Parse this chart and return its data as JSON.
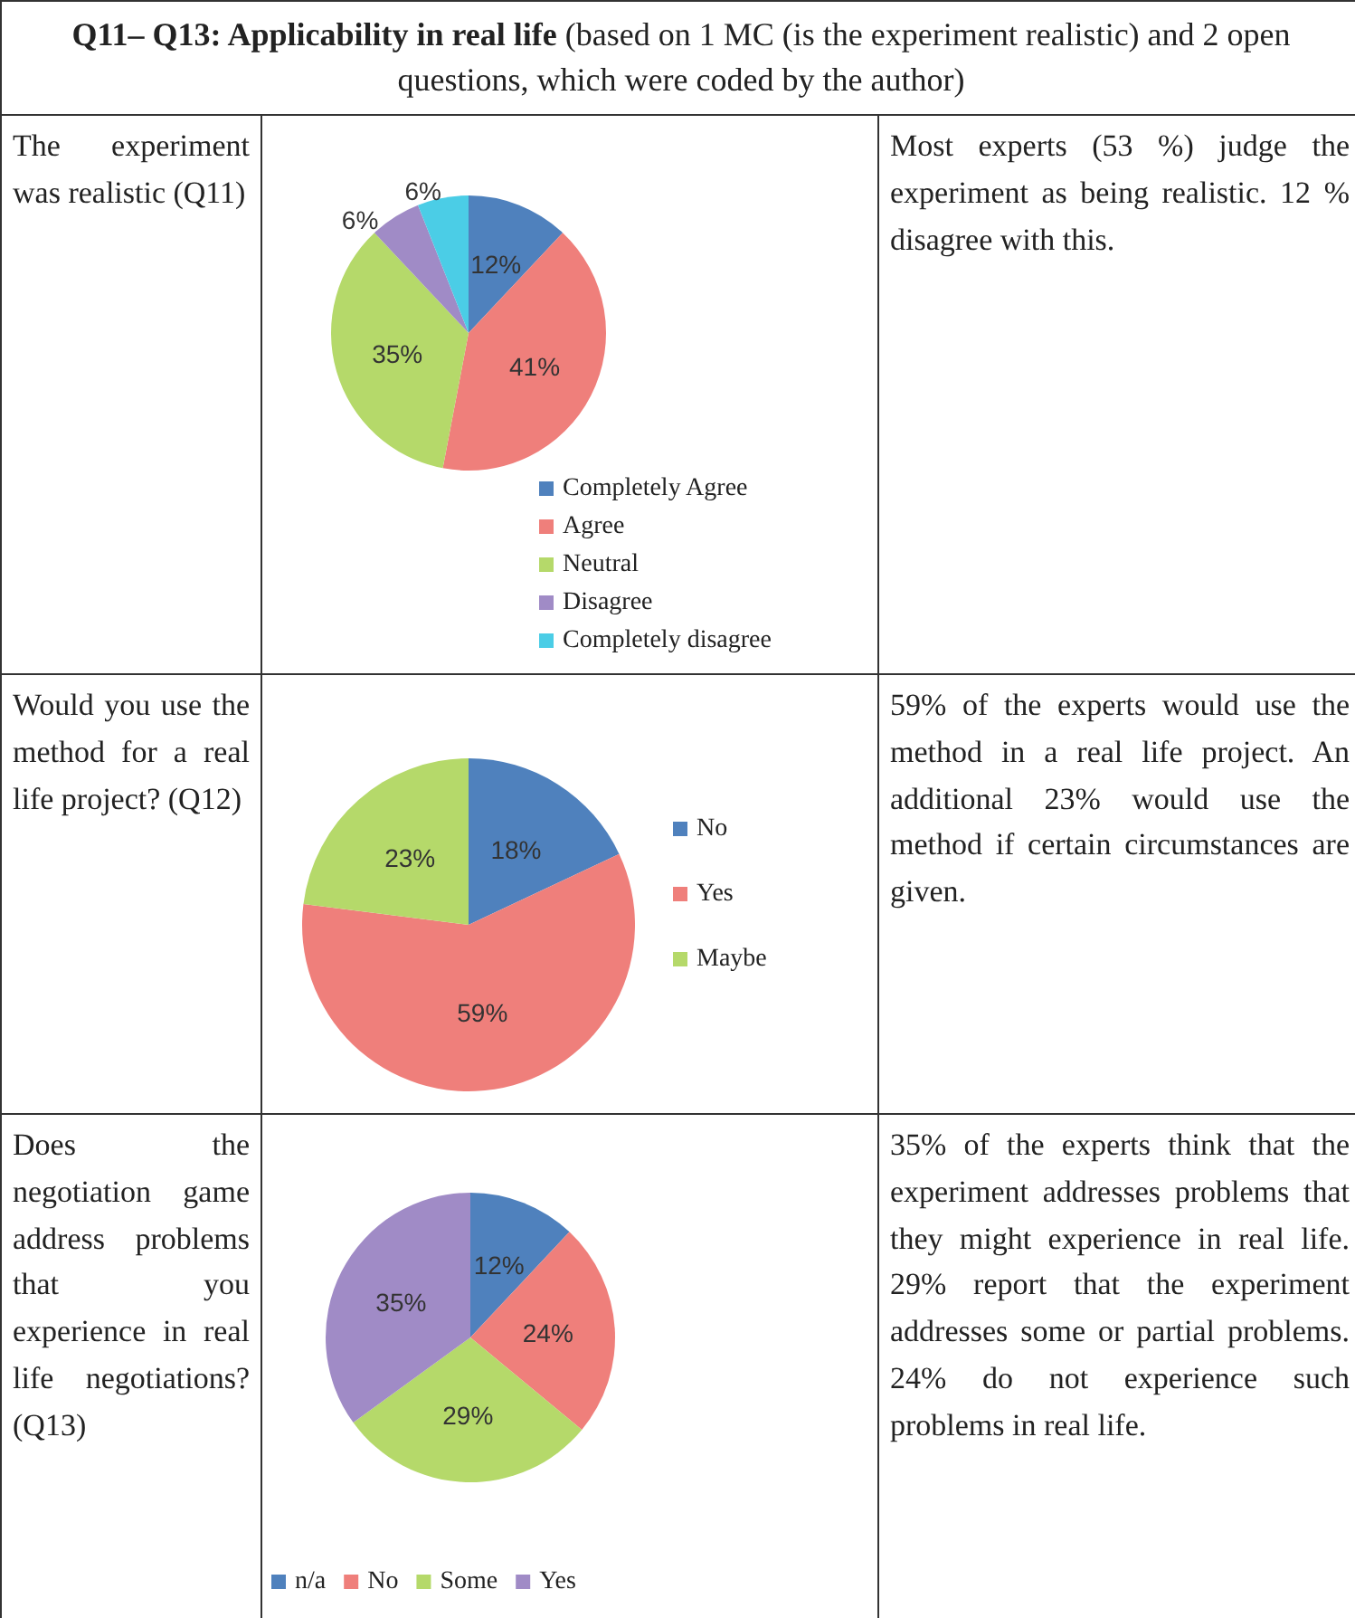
{
  "chart_data": [
    {
      "type": "other",
      "title": "Q11– Q13: Applicability in real life",
      "subtitle": "(based on 1 MC (is the experiment realistic) and 2 open questions, which were coded by the author)"
    },
    {
      "type": "other",
      "title": "The experiment was realistic (Q11)"
    },
    {
      "type": "pie",
      "categories": [
        "Completely Agree",
        "Agree",
        "Neutral",
        "Disagree",
        "Completely disagree"
      ],
      "values": [
        12,
        41,
        35,
        6,
        6
      ],
      "colors": [
        "#4f81bd",
        "#ef7f7b",
        "#b5d96a",
        "#a08bc6",
        "#4bcde6"
      ],
      "value_labels": [
        "12%",
        "41%",
        "35%",
        "6%",
        "6%"
      ],
      "legend": "bottom right"
    },
    {
      "type": "other",
      "annotations": [
        "Most experts (53 %) judge the experiment as being realistic. 12 % disagree with this."
      ]
    },
    {
      "type": "other",
      "title": "Would you use the method for a real life project? (Q12)"
    },
    {
      "type": "pie",
      "categories": [
        "No",
        "Yes",
        "Maybe"
      ],
      "values": [
        18,
        59,
        23
      ],
      "colors": [
        "#4f81bd",
        "#ef7f7b",
        "#b5d96a"
      ],
      "value_labels": [
        "18%",
        "59%",
        "23%"
      ],
      "legend": "right"
    },
    {
      "type": "other",
      "annotations": [
        "59% of the experts would use the method in a real life project. An additional 23% would use the method if certain circumstances are given."
      ]
    },
    {
      "type": "other",
      "title": "Does the negotiation game address problems that you experience in real life negotiations? (Q13)"
    },
    {
      "type": "pie",
      "categories": [
        "n/a",
        "No",
        "Some",
        "Yes"
      ],
      "values": [
        12,
        24,
        29,
        35
      ],
      "colors": [
        "#4f81bd",
        "#ef7f7b",
        "#b5d96a",
        "#a08bc6"
      ],
      "value_labels": [
        "12%",
        "24%",
        "29%",
        "35%"
      ],
      "legend": "bottom"
    },
    {
      "type": "other",
      "annotations": [
        "35% of the experts think that the experiment addresses problems that they might experience in real life. 29% report that the experiment addresses some or partial problems. 24% do not experience such problems in real life."
      ]
    }
  ]
}
